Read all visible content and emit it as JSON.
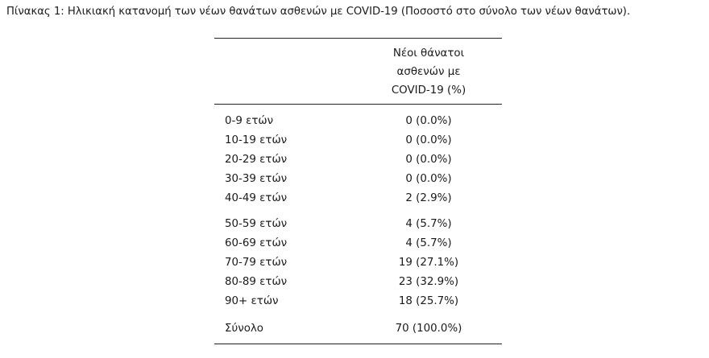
{
  "caption": "Πίνακας 1: Ηλικιακή κατανομή των νέων θανάτων ασθενών με COVID-19 (Ποσοστό στο σύνολο των νέων θανάτων).",
  "table": {
    "header": {
      "line1": "Νέοι θάνατοι",
      "line2": "ασθενών με",
      "line3": "COVID-19 (%)"
    },
    "rows": [
      {
        "label": "0-9 ετών",
        "value": "0 (0.0%)"
      },
      {
        "label": "10-19 ετών",
        "value": "0 (0.0%)"
      },
      {
        "label": "20-29 ετών",
        "value": "0 (0.0%)"
      },
      {
        "label": "30-39 ετών",
        "value": "0 (0.0%)"
      },
      {
        "label": "40-49 ετών",
        "value": "2 (2.9%)"
      },
      {
        "label": "50-59 ετών",
        "value": "4 (5.7%)"
      },
      {
        "label": "60-69 ετών",
        "value": "4 (5.7%)"
      },
      {
        "label": "70-79 ετών",
        "value": "19 (27.1%)"
      },
      {
        "label": "80-89 ετών",
        "value": "23 (32.9%)"
      },
      {
        "label": "90+ ετών",
        "value": "18 (25.7%)"
      }
    ],
    "total": {
      "label": "Σύνολο",
      "value": "70 (100.0%)"
    }
  }
}
